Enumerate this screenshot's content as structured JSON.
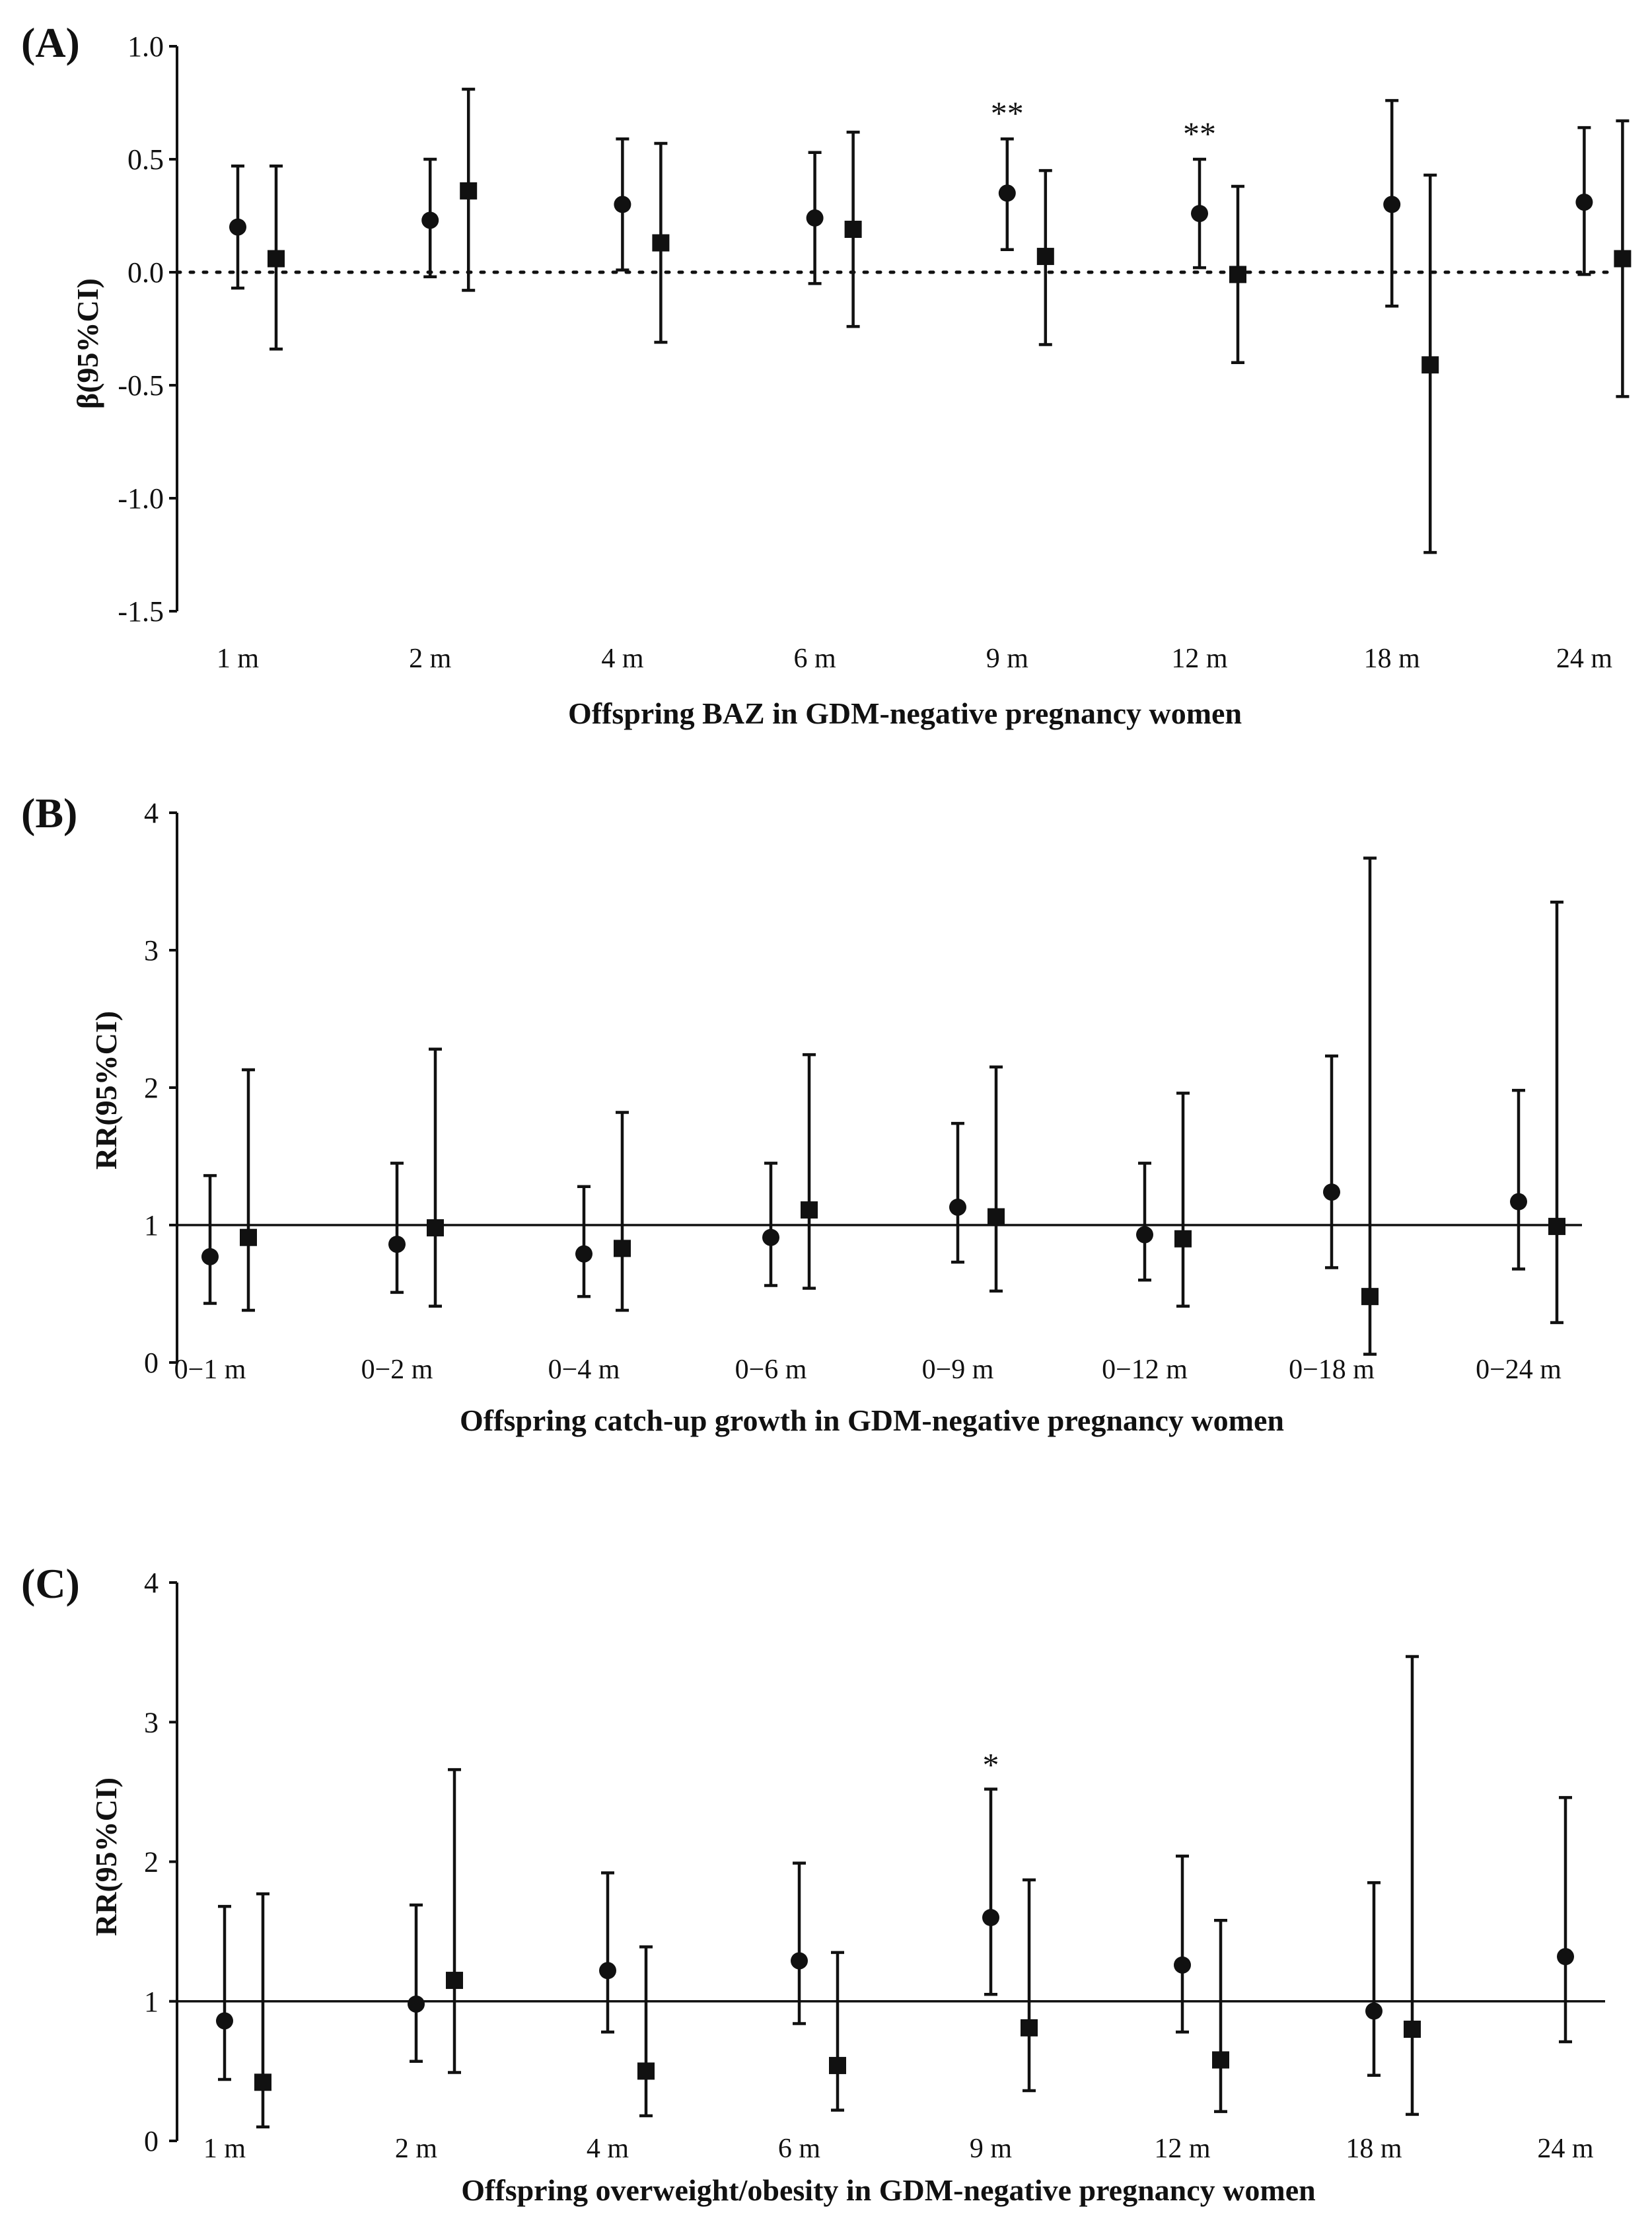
{
  "figure": {
    "panels": [
      {
        "label": "(A)",
        "xlabel": "Offspring BAZ in GDM-negative pregnancy women",
        "ylabel": "β(95%CI)",
        "yticks": [
          "1.0",
          "0.5",
          "0.0",
          "-0.5",
          "-1.0",
          "-1.5"
        ]
      },
      {
        "label": "(B)",
        "xlabel": "Offspring catch-up growth in GDM-negative pregnancy women",
        "ylabel": "RR(95%CI)",
        "yticks": [
          "4",
          "3",
          "2",
          "1",
          "0"
        ]
      },
      {
        "label": "(C)",
        "xlabel": "Offspring overweight/obesity in GDM-negative pregnancy women",
        "ylabel": "RR(95%CI)",
        "yticks": [
          "4",
          "3",
          "2",
          "1",
          "0"
        ]
      }
    ]
  },
  "chart_data": [
    {
      "type": "scatter",
      "title": "(A)",
      "xlabel": "Offspring BAZ in GDM-negative pregnancy women",
      "ylabel": "β(95%CI)",
      "ylim": [
        -1.5,
        1.0
      ],
      "yticks": [
        1.0,
        0.5,
        0.0,
        -0.5,
        -1.0,
        -1.5
      ],
      "reference_line": {
        "y": 0,
        "style": "dotted"
      },
      "categories": [
        "1 m",
        "2 m",
        "4 m",
        "6 m",
        "9 m",
        "12 m",
        "18 m",
        "24 m"
      ],
      "series": [
        {
          "name": "circle",
          "marker": "circle",
          "values": [
            0.2,
            0.23,
            0.3,
            0.24,
            0.35,
            0.26,
            0.3,
            0.31
          ],
          "lower": [
            -0.07,
            -0.02,
            0.01,
            -0.05,
            0.1,
            0.02,
            -0.15,
            -0.01
          ],
          "upper": [
            0.47,
            0.5,
            0.59,
            0.53,
            0.59,
            0.5,
            0.76,
            0.64
          ]
        },
        {
          "name": "square",
          "marker": "square",
          "values": [
            0.06,
            0.36,
            0.13,
            0.19,
            0.07,
            -0.01,
            -0.41,
            0.06
          ],
          "lower": [
            -0.34,
            -0.08,
            -0.31,
            -0.24,
            -0.32,
            -0.4,
            -1.24,
            -0.55
          ],
          "upper": [
            0.47,
            0.81,
            0.57,
            0.62,
            0.45,
            0.38,
            0.43,
            0.67
          ]
        }
      ],
      "annotations": [
        {
          "category": "9 m",
          "text": "**"
        },
        {
          "category": "12 m",
          "text": "**"
        }
      ]
    },
    {
      "type": "scatter",
      "title": "(B)",
      "xlabel": "Offspring catch-up growth in GDM-negative pregnancy women",
      "ylabel": "RR(95%CI)",
      "ylim": [
        0,
        4
      ],
      "yticks": [
        4,
        3,
        2,
        1,
        0
      ],
      "reference_line": {
        "y": 1,
        "style": "solid"
      },
      "categories": [
        "0−1 m",
        "0−2 m",
        "0−4 m",
        "0−6 m",
        "0−9 m",
        "0−12 m",
        "0−18 m",
        "0−24 m"
      ],
      "series": [
        {
          "name": "circle",
          "marker": "circle",
          "values": [
            0.77,
            0.86,
            0.79,
            0.91,
            1.13,
            0.93,
            1.24,
            1.17
          ],
          "lower": [
            0.43,
            0.51,
            0.48,
            0.56,
            0.73,
            0.6,
            0.69,
            0.68
          ],
          "upper": [
            1.36,
            1.45,
            1.28,
            1.45,
            1.74,
            1.45,
            2.23,
            1.98
          ]
        },
        {
          "name": "square",
          "marker": "square",
          "values": [
            0.91,
            0.98,
            0.83,
            1.11,
            1.06,
            0.9,
            0.48,
            0.99
          ],
          "lower": [
            0.38,
            0.41,
            0.38,
            0.54,
            0.52,
            0.41,
            0.06,
            0.29
          ],
          "upper": [
            2.13,
            2.28,
            1.82,
            2.24,
            2.15,
            1.96,
            3.67,
            3.35
          ]
        }
      ]
    },
    {
      "type": "scatter",
      "title": "(C)",
      "xlabel": "Offspring overweight/obesity in GDM-negative pregnancy women",
      "ylabel": "RR(95%CI)",
      "ylim": [
        0,
        4
      ],
      "yticks": [
        4,
        3,
        2,
        1,
        0
      ],
      "reference_line": {
        "y": 1,
        "style": "solid"
      },
      "categories": [
        "1 m",
        "2 m",
        "4 m",
        "6 m",
        "9 m",
        "12 m",
        "18 m",
        "24 m"
      ],
      "series": [
        {
          "name": "circle",
          "marker": "circle",
          "values": [
            0.86,
            0.98,
            1.22,
            1.29,
            1.6,
            1.26,
            0.93,
            1.32
          ],
          "lower": [
            0.44,
            0.57,
            0.78,
            0.84,
            1.05,
            0.78,
            0.47,
            0.71
          ],
          "upper": [
            1.68,
            1.69,
            1.92,
            1.99,
            2.52,
            2.04,
            1.85,
            2.46
          ]
        },
        {
          "name": "square",
          "marker": "square",
          "values": [
            0.42,
            1.15,
            0.5,
            0.54,
            0.81,
            0.58,
            0.8,
            null
          ],
          "lower": [
            0.1,
            0.49,
            0.18,
            0.22,
            0.36,
            0.21,
            0.19,
            null
          ],
          "upper": [
            1.77,
            2.66,
            1.39,
            1.35,
            1.87,
            1.58,
            3.47,
            null
          ]
        }
      ],
      "annotations": [
        {
          "category": "9 m",
          "text": "*"
        }
      ]
    }
  ]
}
